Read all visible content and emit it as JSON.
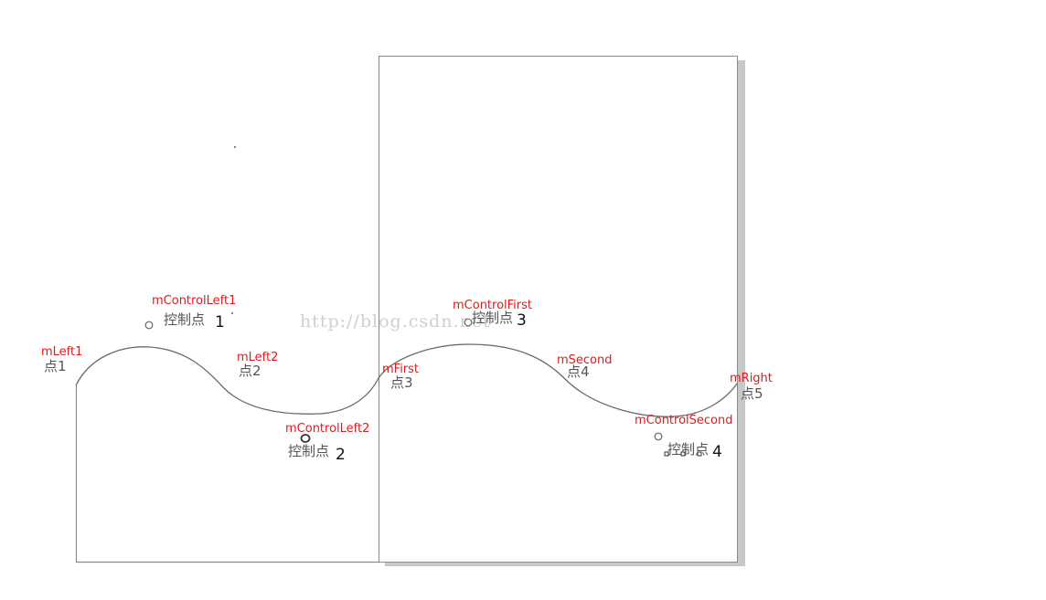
{
  "watermark": "http://blog.csdn.net",
  "points": [
    {
      "var": "mLeft1",
      "label": "点1"
    },
    {
      "var": "mLeft2",
      "label": "点2"
    },
    {
      "var": "mFirst",
      "label": "点3"
    },
    {
      "var": "mSecond",
      "label": "点4"
    },
    {
      "var": "mRight",
      "label": "点5"
    }
  ],
  "controls": [
    {
      "var": "mControlLeft1",
      "label": "控制点",
      "num": "1"
    },
    {
      "var": "mControlLeft2",
      "label": "控制点",
      "num": "2"
    },
    {
      "var": "mControlFirst",
      "label": "控制点",
      "num": "3"
    },
    {
      "var": "mControlSecond",
      "label": "控制点",
      "num": "4"
    }
  ]
}
